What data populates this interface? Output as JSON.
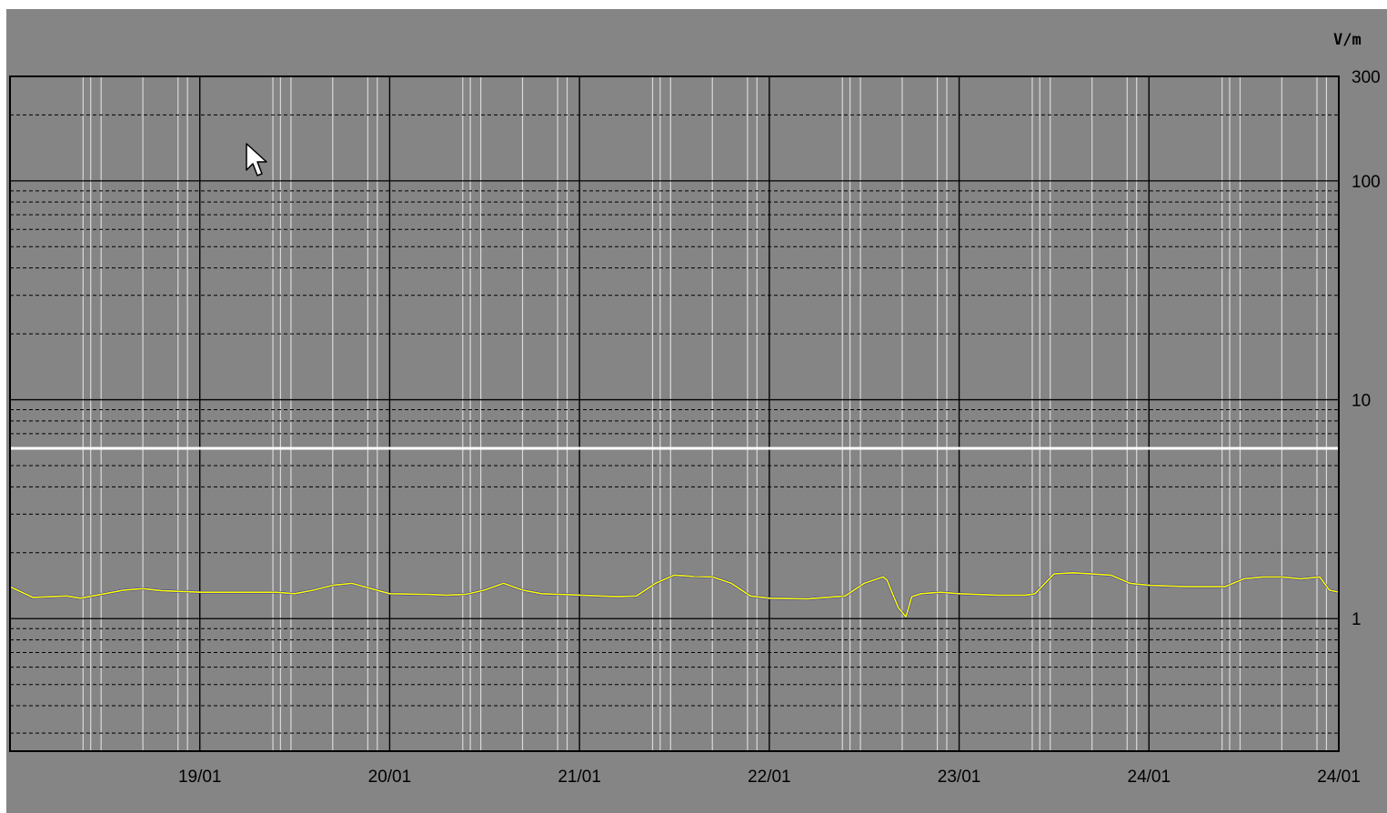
{
  "chart_data": {
    "type": "line",
    "title": "",
    "ylabel": "V/m",
    "y_scale": "log",
    "ylim": [
      0.3,
      300
    ],
    "y_major_ticks": [
      1,
      10,
      100,
      300
    ],
    "y_tick_labels": [
      "1",
      "10",
      "100",
      "300"
    ],
    "x_tick_labels": [
      "19/01",
      "20/01",
      "21/01",
      "22/01",
      "23/01",
      "24/01",
      "24/01"
    ],
    "x_unit": "days",
    "xlim": [
      0,
      7
    ],
    "threshold_line": 6,
    "grid": true,
    "series": [
      {
        "color": "#ffff00",
        "x": [
          0,
          0.12,
          0.3,
          0.37,
          0.5,
          0.6,
          0.7,
          0.8,
          1.0,
          1.2,
          1.4,
          1.5,
          1.6,
          1.7,
          1.8,
          2.0,
          2.2,
          2.3,
          2.4,
          2.5,
          2.6,
          2.7,
          2.8,
          3.0,
          3.2,
          3.3,
          3.4,
          3.5,
          3.6,
          3.7,
          3.8,
          3.9,
          4.0,
          4.2,
          4.4,
          4.5,
          4.6,
          4.62,
          4.68,
          4.72,
          4.75,
          4.8,
          4.9,
          5.0,
          5.2,
          5.35,
          5.4,
          5.5,
          5.6,
          5.7,
          5.8,
          5.9,
          6.0,
          6.2,
          6.4,
          6.5,
          6.6,
          6.7,
          6.8,
          6.9,
          6.95,
          7.0
        ],
        "values": [
          1.4,
          1.25,
          1.27,
          1.24,
          1.3,
          1.35,
          1.37,
          1.34,
          1.32,
          1.32,
          1.32,
          1.3,
          1.35,
          1.42,
          1.45,
          1.3,
          1.29,
          1.28,
          1.29,
          1.35,
          1.45,
          1.35,
          1.3,
          1.28,
          1.26,
          1.27,
          1.45,
          1.58,
          1.56,
          1.55,
          1.45,
          1.27,
          1.24,
          1.23,
          1.27,
          1.45,
          1.55,
          1.5,
          1.12,
          1.02,
          1.26,
          1.3,
          1.32,
          1.3,
          1.28,
          1.28,
          1.3,
          1.6,
          1.62,
          1.6,
          1.58,
          1.45,
          1.42,
          1.4,
          1.4,
          1.52,
          1.55,
          1.55,
          1.52,
          1.55,
          1.35,
          1.32
        ]
      }
    ]
  },
  "colors": {
    "background": "#858585",
    "series": "#ffff00",
    "series_shadow": "#2a2ab0",
    "threshold": "#ffffff",
    "grid_major": "#000000",
    "grid_minor": "#000000",
    "grid_night": "#d8d8d8"
  },
  "icons": {
    "cursor": "arrow-cursor-icon"
  }
}
